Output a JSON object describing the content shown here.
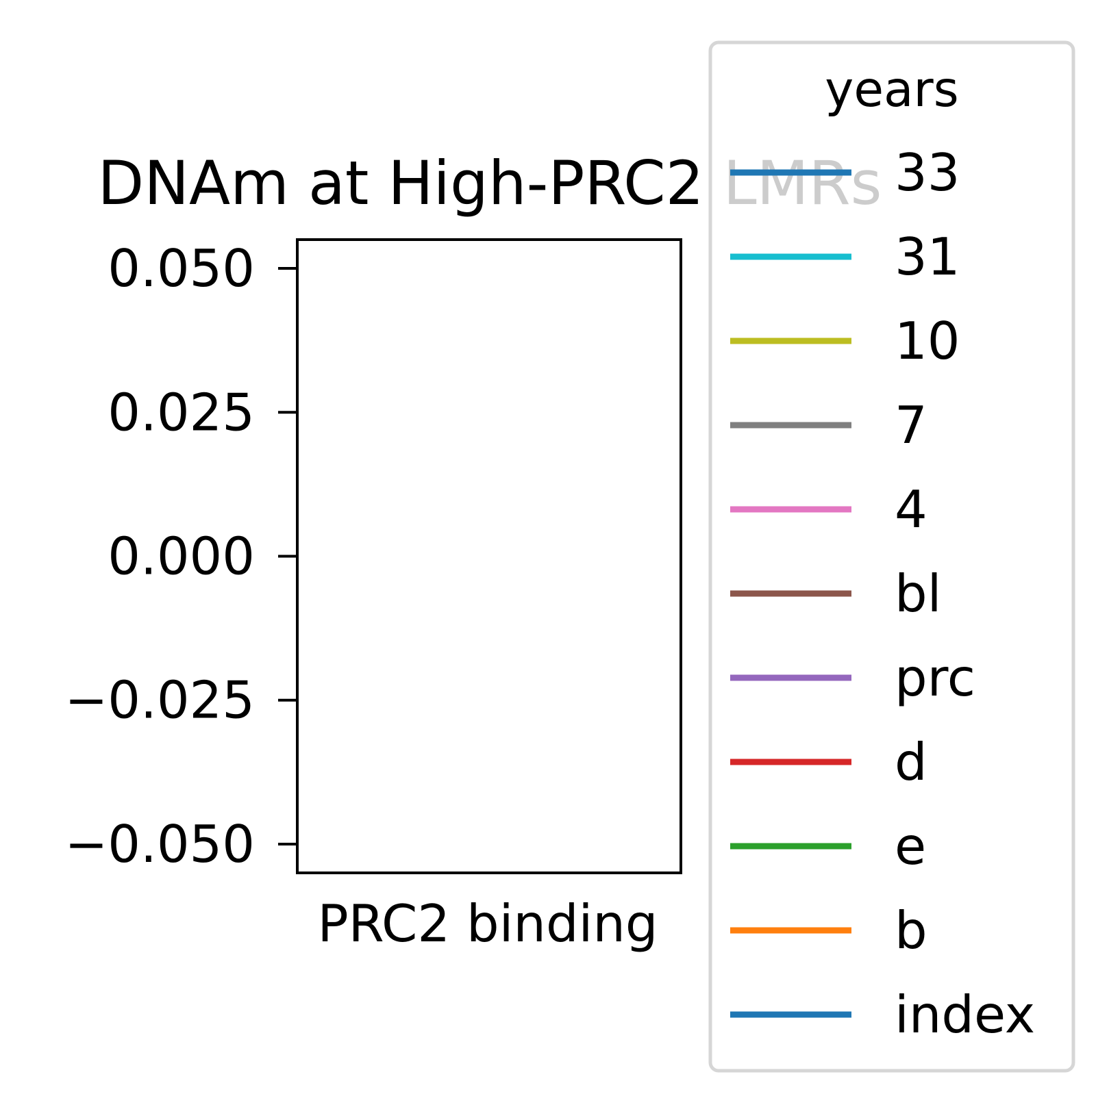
{
  "chart_data": {
    "type": "line",
    "title": "DNAm at High-PRC2 LMRs",
    "xlabel": "",
    "ylabel": "",
    "categories": [
      "PRC2 binding"
    ],
    "ylim": [
      -0.055,
      0.055
    ],
    "yticks": [
      {
        "value": 0.05,
        "label": "0.050"
      },
      {
        "value": 0.025,
        "label": "0.025"
      },
      {
        "value": 0.0,
        "label": "0.000"
      },
      {
        "value": -0.025,
        "label": "−0.025"
      },
      {
        "value": -0.05,
        "label": "−0.050"
      }
    ],
    "grid": false,
    "legend": {
      "title": "years",
      "placement": "right, outside plot, overlapping title",
      "entries": [
        {
          "label": "33",
          "color": "#1f77b4"
        },
        {
          "label": "31",
          "color": "#17becf"
        },
        {
          "label": "10",
          "color": "#bcbd22"
        },
        {
          "label": "7",
          "color": "#7f7f7f"
        },
        {
          "label": "4",
          "color": "#e377c2"
        },
        {
          "label": "bl",
          "color": "#8c564b"
        },
        {
          "label": "prc",
          "color": "#9467bd"
        },
        {
          "label": "d",
          "color": "#d62728"
        },
        {
          "label": "e",
          "color": "#2ca02c"
        },
        {
          "label": "b",
          "color": "#ff7f0e"
        },
        {
          "label": "index",
          "color": "#1f77b4"
        }
      ]
    },
    "series": []
  }
}
